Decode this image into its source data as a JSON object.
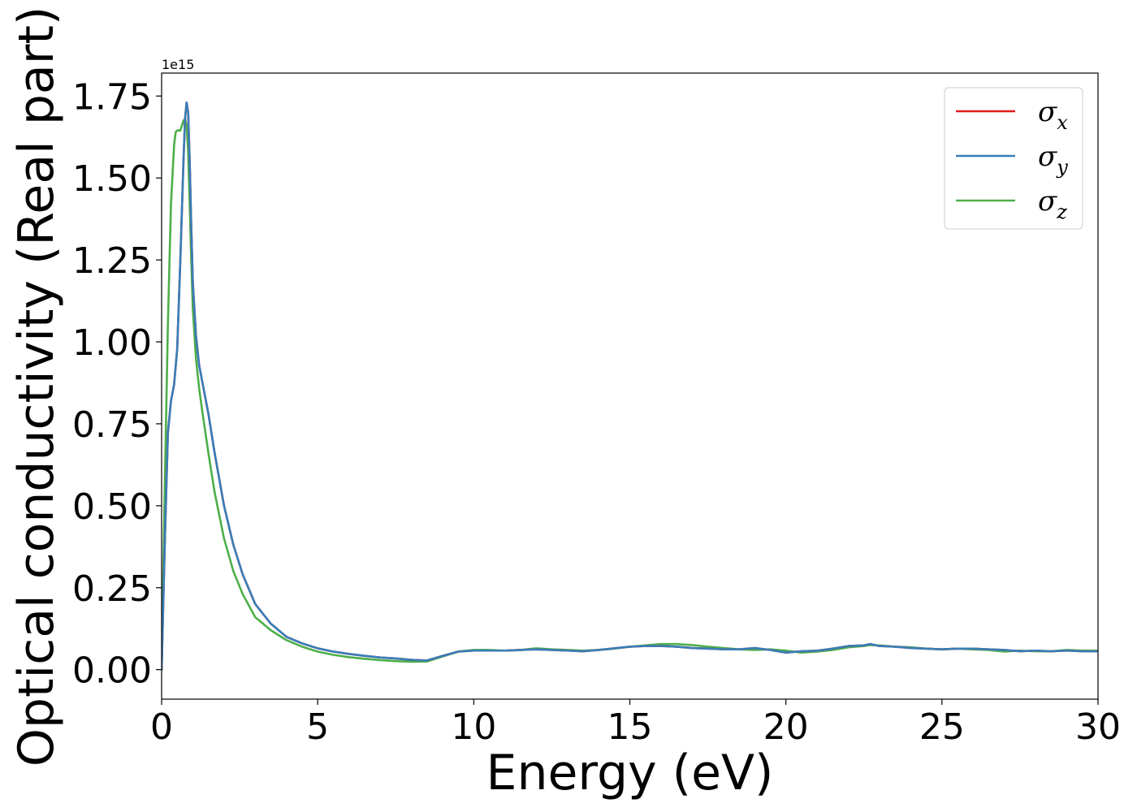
{
  "chart_data": {
    "type": "line",
    "xlabel": "Energy (eV)",
    "ylabel": "Optical conductivity (Real part)",
    "y_offset_label": "1e15",
    "xlim": [
      0,
      30
    ],
    "ylim": [
      -0.09,
      1.82
    ],
    "xticks": [
      0,
      5,
      10,
      15,
      20,
      25,
      30
    ],
    "xtick_labels": [
      "0",
      "5",
      "10",
      "15",
      "20",
      "25",
      "30"
    ],
    "yticks": [
      0.0,
      0.25,
      0.5,
      0.75,
      1.0,
      1.25,
      1.5,
      1.75
    ],
    "ytick_labels": [
      "0.00",
      "0.25",
      "0.50",
      "0.75",
      "1.00",
      "1.25",
      "1.50",
      "1.75"
    ],
    "grid": false,
    "legend_position": "top-right",
    "series": [
      {
        "name": "σ_x",
        "legend_base": "σ",
        "legend_sub": "x",
        "color": "#e41a1c",
        "x": [
          0,
          0.1,
          0.2,
          0.3,
          0.4,
          0.5,
          0.6,
          0.7,
          0.75,
          0.8,
          0.85,
          0.9,
          0.95,
          1.0,
          1.1,
          1.2,
          1.3,
          1.5,
          1.7,
          2.0,
          2.3,
          2.6,
          3.0,
          3.5,
          4.0,
          4.5,
          5.0,
          5.5,
          6.0,
          6.5,
          7.0,
          7.5,
          8.0,
          8.5,
          9.0,
          9.5,
          10.0,
          10.5,
          11.0,
          11.5,
          12.0,
          12.5,
          13.0,
          13.5,
          14.0,
          14.5,
          15.0,
          15.5,
          16.0,
          16.5,
          17.0,
          17.5,
          18.0,
          18.5,
          19.0,
          19.5,
          20.0,
          20.5,
          21.0,
          21.5,
          22.0,
          22.5,
          22.7,
          23.0,
          23.5,
          24.0,
          24.5,
          25.0,
          25.5,
          26.0,
          26.5,
          27.0,
          27.5,
          28.0,
          28.5,
          29.0,
          29.5,
          30.0
        ],
        "y": [
          0.0,
          0.38,
          0.72,
          0.82,
          0.87,
          0.98,
          1.25,
          1.55,
          1.68,
          1.73,
          1.7,
          1.55,
          1.35,
          1.18,
          1.02,
          0.93,
          0.88,
          0.78,
          0.66,
          0.5,
          0.38,
          0.29,
          0.2,
          0.14,
          0.1,
          0.08,
          0.065,
          0.055,
          0.048,
          0.042,
          0.037,
          0.034,
          0.03,
          0.028,
          0.042,
          0.055,
          0.058,
          0.058,
          0.058,
          0.06,
          0.062,
          0.06,
          0.058,
          0.056,
          0.06,
          0.065,
          0.07,
          0.072,
          0.072,
          0.07,
          0.066,
          0.064,
          0.062,
          0.062,
          0.066,
          0.06,
          0.052,
          0.056,
          0.058,
          0.064,
          0.072,
          0.074,
          0.078,
          0.072,
          0.07,
          0.066,
          0.064,
          0.062,
          0.064,
          0.064,
          0.062,
          0.06,
          0.056,
          0.058,
          0.056,
          0.058,
          0.056,
          0.056
        ]
      },
      {
        "name": "σ_y",
        "legend_base": "σ",
        "legend_sub": "y",
        "color": "#377eb8",
        "x": [
          0,
          0.1,
          0.2,
          0.3,
          0.4,
          0.5,
          0.6,
          0.7,
          0.75,
          0.8,
          0.85,
          0.9,
          0.95,
          1.0,
          1.1,
          1.2,
          1.3,
          1.5,
          1.7,
          2.0,
          2.3,
          2.6,
          3.0,
          3.5,
          4.0,
          4.5,
          5.0,
          5.5,
          6.0,
          6.5,
          7.0,
          7.5,
          8.0,
          8.5,
          9.0,
          9.5,
          10.0,
          10.5,
          11.0,
          11.5,
          12.0,
          12.5,
          13.0,
          13.5,
          14.0,
          14.5,
          15.0,
          15.5,
          16.0,
          16.5,
          17.0,
          17.5,
          18.0,
          18.5,
          19.0,
          19.5,
          20.0,
          20.5,
          21.0,
          21.5,
          22.0,
          22.5,
          22.7,
          23.0,
          23.5,
          24.0,
          24.5,
          25.0,
          25.5,
          26.0,
          26.5,
          27.0,
          27.5,
          28.0,
          28.5,
          29.0,
          29.5,
          30.0
        ],
        "y": [
          0.0,
          0.38,
          0.72,
          0.82,
          0.87,
          0.98,
          1.25,
          1.55,
          1.68,
          1.73,
          1.7,
          1.55,
          1.35,
          1.18,
          1.02,
          0.93,
          0.88,
          0.78,
          0.66,
          0.5,
          0.38,
          0.29,
          0.2,
          0.14,
          0.1,
          0.08,
          0.065,
          0.055,
          0.048,
          0.042,
          0.037,
          0.034,
          0.03,
          0.028,
          0.042,
          0.055,
          0.058,
          0.058,
          0.058,
          0.06,
          0.062,
          0.06,
          0.058,
          0.056,
          0.06,
          0.065,
          0.07,
          0.072,
          0.072,
          0.07,
          0.066,
          0.064,
          0.062,
          0.062,
          0.066,
          0.06,
          0.052,
          0.056,
          0.058,
          0.064,
          0.072,
          0.074,
          0.078,
          0.072,
          0.07,
          0.066,
          0.064,
          0.062,
          0.064,
          0.064,
          0.062,
          0.06,
          0.056,
          0.058,
          0.056,
          0.058,
          0.056,
          0.056
        ]
      },
      {
        "name": "σ_z",
        "legend_base": "σ",
        "legend_sub": "z",
        "color": "#4daf4a",
        "x": [
          0,
          0.1,
          0.2,
          0.3,
          0.4,
          0.45,
          0.5,
          0.55,
          0.6,
          0.65,
          0.7,
          0.75,
          0.8,
          0.85,
          0.9,
          0.95,
          1.0,
          1.1,
          1.2,
          1.3,
          1.5,
          1.7,
          2.0,
          2.3,
          2.6,
          3.0,
          3.5,
          4.0,
          4.5,
          5.0,
          5.5,
          6.0,
          6.5,
          7.0,
          7.5,
          8.0,
          8.5,
          9.0,
          9.5,
          10.0,
          10.5,
          11.0,
          11.5,
          12.0,
          12.5,
          13.0,
          13.5,
          14.0,
          14.5,
          15.0,
          15.5,
          16.0,
          16.5,
          17.0,
          17.5,
          18.0,
          18.5,
          19.0,
          19.5,
          20.0,
          20.5,
          21.0,
          21.5,
          22.0,
          22.5,
          22.7,
          23.0,
          23.5,
          24.0,
          24.5,
          25.0,
          25.5,
          26.0,
          26.5,
          27.0,
          27.5,
          28.0,
          28.5,
          29.0,
          29.5,
          30.0
        ],
        "y": [
          0.0,
          0.55,
          1.05,
          1.42,
          1.6,
          1.64,
          1.645,
          1.645,
          1.645,
          1.66,
          1.675,
          1.68,
          1.66,
          1.58,
          1.42,
          1.25,
          1.1,
          0.95,
          0.86,
          0.79,
          0.66,
          0.54,
          0.4,
          0.3,
          0.23,
          0.16,
          0.12,
          0.09,
          0.07,
          0.055,
          0.045,
          0.038,
          0.033,
          0.029,
          0.026,
          0.024,
          0.025,
          0.04,
          0.055,
          0.06,
          0.06,
          0.058,
          0.06,
          0.065,
          0.062,
          0.06,
          0.058,
          0.06,
          0.064,
          0.07,
          0.074,
          0.078,
          0.078,
          0.075,
          0.07,
          0.066,
          0.062,
          0.06,
          0.062,
          0.058,
          0.052,
          0.055,
          0.06,
          0.068,
          0.072,
          0.075,
          0.074,
          0.07,
          0.068,
          0.064,
          0.062,
          0.064,
          0.062,
          0.06,
          0.055,
          0.058,
          0.056,
          0.056,
          0.06,
          0.058,
          0.058
        ]
      }
    ]
  }
}
